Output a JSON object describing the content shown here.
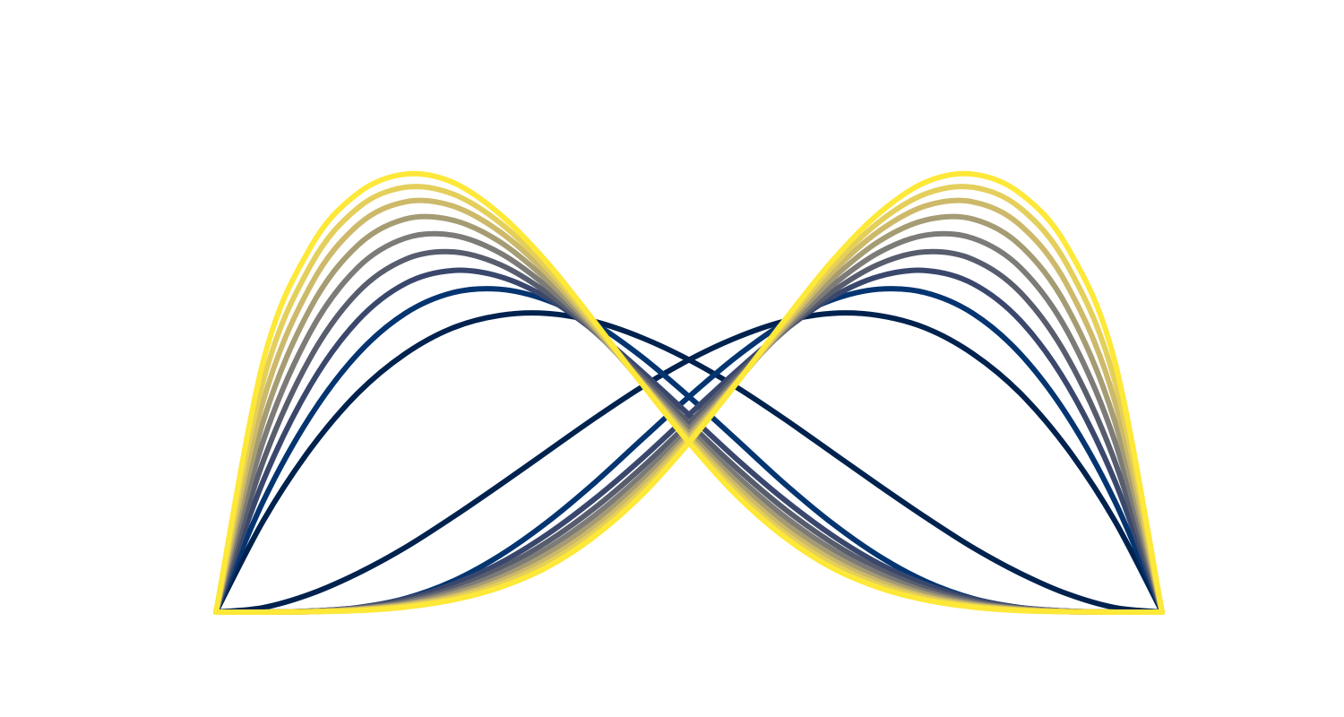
{
  "chart_data": {
    "type": "line",
    "title": "",
    "xlabel": "",
    "ylabel": "",
    "axes_visible": false,
    "grid": false,
    "legend": "none",
    "xlim": [
      0,
      1
    ],
    "ylim": [
      0,
      1
    ],
    "x": [
      0,
      0.05,
      0.1,
      0.15,
      0.2,
      0.25,
      0.3,
      0.35,
      0.4,
      0.45,
      0.5,
      0.55,
      0.6,
      0.65,
      0.7,
      0.75,
      0.8,
      0.85,
      0.9,
      0.95,
      1
    ],
    "families": [
      {
        "mirrored_pair": true,
        "series": [
          {
            "color": "#00224e",
            "values": [
              0,
              0.181,
              0.324,
              0.434,
              0.512,
              0.563,
              0.588,
              0.592,
              0.576,
              0.544,
              0.5,
              0.446,
              0.384,
              0.318,
              0.252,
              0.188,
              0.128,
              0.077,
              0.036,
              0.009,
              0
            ]
          },
          {
            "color": "#043571",
            "values": [
              0,
              0.22,
              0.389,
              0.512,
              0.592,
              0.633,
              0.64,
              0.618,
              0.572,
              0.506,
              0.427,
              0.342,
              0.256,
              0.178,
              0.112,
              0.061,
              0.027,
              0.009,
              0.002,
              0.0002,
              0
            ]
          },
          {
            "color": "#3a476d",
            "values": [
              0,
              0.26,
              0.45,
              0.578,
              0.651,
              0.677,
              0.665,
              0.623,
              0.557,
              0.477,
              0.391,
              0.304,
              0.224,
              0.154,
              0.097,
              0.055,
              0.026,
              0.009,
              0.002,
              0.0002,
              0
            ]
          },
          {
            "color": "#575d6d",
            "values": [
              0,
              0.299,
              0.505,
              0.634,
              0.699,
              0.714,
              0.689,
              0.633,
              0.556,
              0.468,
              0.375,
              0.286,
              0.206,
              0.139,
              0.086,
              0.047,
              0.022,
              0.008,
              0.002,
              0.0001,
              0
            ]
          },
          {
            "color": "#7c7b78",
            "values": [
              0,
              0.339,
              0.556,
              0.683,
              0.741,
              0.747,
              0.712,
              0.645,
              0.558,
              0.461,
              0.363,
              0.271,
              0.191,
              0.126,
              0.077,
              0.041,
              0.019,
              0.007,
              0.002,
              0.0001,
              0
            ]
          },
          {
            "color": "#a59c74",
            "values": [
              0,
              0.378,
              0.603,
              0.727,
              0.779,
              0.777,
              0.734,
              0.658,
              0.562,
              0.457,
              0.354,
              0.259,
              0.178,
              0.115,
              0.068,
              0.036,
              0.016,
              0.006,
              0.001,
              0.0001,
              0
            ]
          },
          {
            "color": "#cdb96a",
            "values": [
              0,
              0.418,
              0.647,
              0.767,
              0.813,
              0.805,
              0.754,
              0.671,
              0.566,
              0.455,
              0.347,
              0.249,
              0.167,
              0.105,
              0.061,
              0.031,
              0.014,
              0.005,
              0.001,
              0.0001,
              0
            ]
          },
          {
            "color": "#e4cf5b",
            "values": [
              0,
              0.458,
              0.687,
              0.801,
              0.842,
              0.829,
              0.772,
              0.682,
              0.571,
              0.454,
              0.341,
              0.24,
              0.158,
              0.097,
              0.055,
              0.028,
              0.012,
              0.004,
              0.001,
              0.0001,
              0
            ]
          },
          {
            "color": "#fee838",
            "values": [
              0,
              0.497,
              0.723,
              0.83,
              0.868,
              0.852,
              0.789,
              0.693,
              0.576,
              0.453,
              0.336,
              0.232,
              0.15,
              0.089,
              0.049,
              0.024,
              0.01,
              0.003,
              0.001,
              0.0001,
              0
            ]
          }
        ]
      }
    ]
  }
}
